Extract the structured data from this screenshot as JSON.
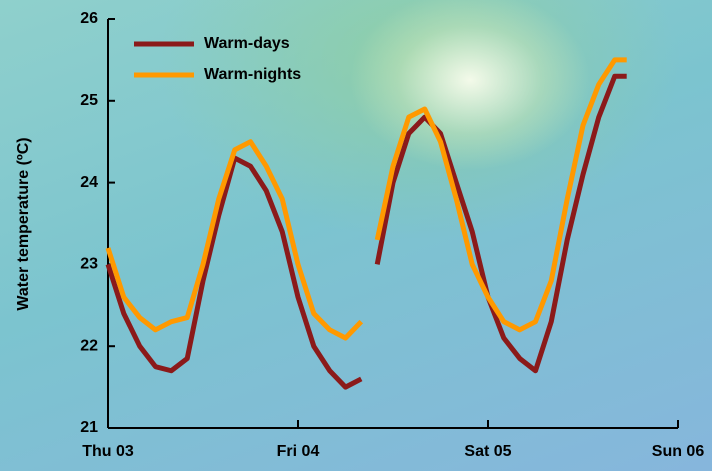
{
  "chart_data": {
    "type": "line",
    "y_label": "Water temperature (ºC)",
    "x": [
      0,
      0.083,
      0.167,
      0.25,
      0.333,
      0.417,
      0.5,
      0.583,
      0.667,
      0.75,
      0.833,
      0.917,
      1.0,
      1.083,
      1.167,
      1.25,
      1.333,
      1.375,
      1.417,
      1.5,
      1.583,
      1.667,
      1.75,
      1.833,
      1.917,
      2.0,
      2.083,
      2.167,
      2.25,
      2.333,
      2.417,
      2.5,
      2.583,
      2.667,
      2.73
    ],
    "series": [
      {
        "name": "Warm-days",
        "color": "#8b1a1a",
        "values": [
          23.0,
          22.4,
          22.0,
          21.75,
          21.7,
          21.85,
          22.8,
          23.6,
          24.3,
          24.2,
          23.9,
          23.4,
          22.6,
          22.0,
          21.7,
          21.5,
          21.6,
          null,
          23.0,
          24.0,
          24.6,
          24.8,
          24.6,
          24.0,
          23.4,
          22.6,
          22.1,
          21.85,
          21.7,
          22.3,
          23.3,
          24.1,
          24.8,
          25.3,
          25.3
        ]
      },
      {
        "name": "Warm-nights",
        "color": "#ff9900",
        "values": [
          23.2,
          22.6,
          22.35,
          22.2,
          22.3,
          22.35,
          23.0,
          23.8,
          24.4,
          24.5,
          24.2,
          23.8,
          23.0,
          22.4,
          22.2,
          22.1,
          22.3,
          null,
          23.3,
          24.2,
          24.8,
          24.9,
          24.5,
          23.8,
          23.0,
          22.6,
          22.3,
          22.2,
          22.3,
          22.8,
          23.8,
          24.7,
          25.2,
          25.5,
          25.5
        ]
      }
    ],
    "xlim": [
      0,
      3
    ],
    "xticks": [
      {
        "value": 0,
        "label": "Thu 03"
      },
      {
        "value": 1,
        "label": "Fri 04"
      },
      {
        "value": 2,
        "label": "Sat 05"
      },
      {
        "value": 3,
        "label": "Sun 06"
      }
    ],
    "ylim": [
      21,
      26
    ],
    "yticks": [
      21,
      22,
      23,
      24,
      25,
      26
    ],
    "legend": "upper left"
  }
}
